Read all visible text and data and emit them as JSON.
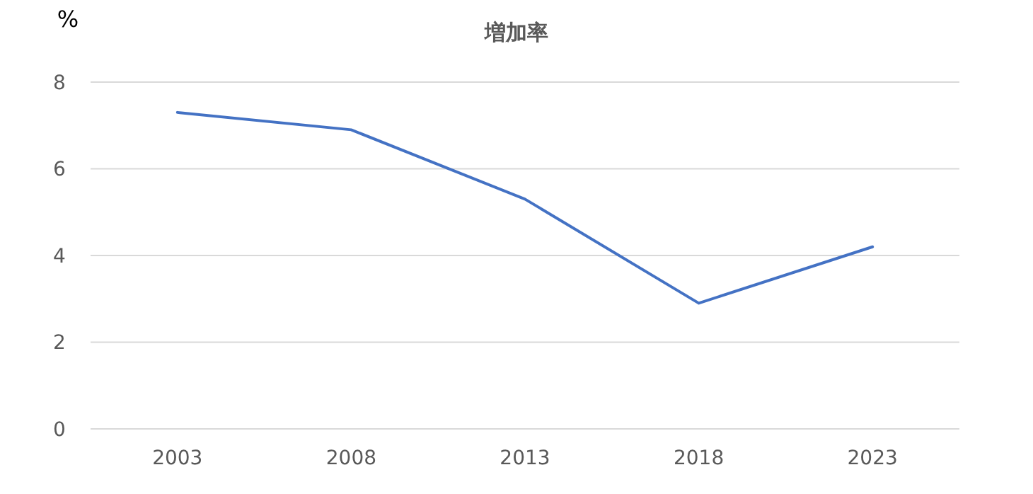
{
  "chart_data": {
    "type": "line",
    "title": "増加率",
    "ylabel": "%",
    "categories": [
      "2003",
      "2008",
      "2013",
      "2018",
      "2023"
    ],
    "series": [
      {
        "color": "#4472c4",
        "values": [
          7.3,
          6.9,
          5.3,
          2.9,
          4.2
        ]
      }
    ],
    "ylim": [
      0,
      8
    ],
    "yticks": [
      0,
      2,
      4,
      6,
      8
    ],
    "grid": "y",
    "marker": "none",
    "line_style": "solid"
  }
}
